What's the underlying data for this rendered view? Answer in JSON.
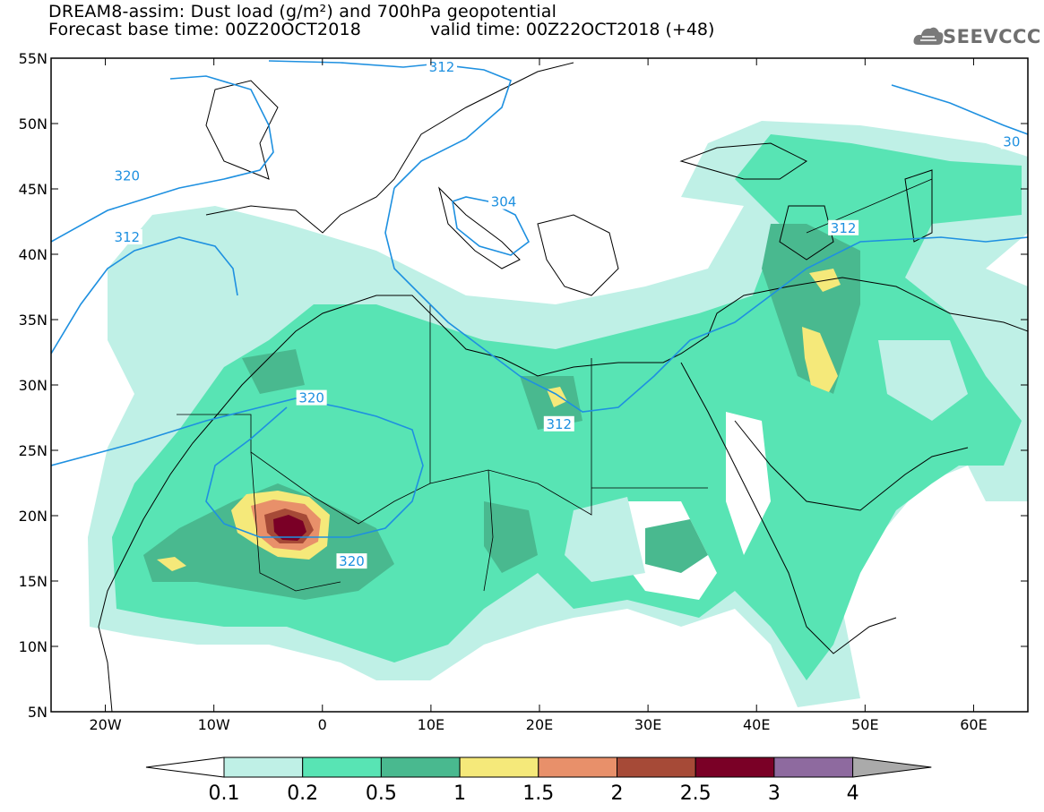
{
  "title_line1": "DREAM8-assim: Dust load (g/m²) and 700hPa geopotential",
  "title_line2": "Forecast base time: 00Z20OCT2018",
  "valid_time": "valid time: 00Z22OCT2018 (+48)",
  "logo": {
    "text": "SEEVCCC",
    "icon": "cloud-logo-icon"
  },
  "map": {
    "lon_range": [
      -25,
      65
    ],
    "lat_range": [
      5,
      55
    ],
    "lat_ticks": [
      {
        "value": 55,
        "label": "55N"
      },
      {
        "value": 50,
        "label": "50N"
      },
      {
        "value": 45,
        "label": "45N"
      },
      {
        "value": 40,
        "label": "40N"
      },
      {
        "value": 35,
        "label": "35N"
      },
      {
        "value": 30,
        "label": "30N"
      },
      {
        "value": 25,
        "label": "25N"
      },
      {
        "value": 20,
        "label": "20N"
      },
      {
        "value": 15,
        "label": "15N"
      },
      {
        "value": 10,
        "label": "10N"
      },
      {
        "value": 5,
        "label": "5N"
      }
    ],
    "lon_ticks": [
      {
        "value": -20,
        "label": "20W"
      },
      {
        "value": -10,
        "label": "10W"
      },
      {
        "value": 0,
        "label": "0"
      },
      {
        "value": 10,
        "label": "10E"
      },
      {
        "value": 20,
        "label": "20E"
      },
      {
        "value": 30,
        "label": "30E"
      },
      {
        "value": 40,
        "label": "40E"
      },
      {
        "value": 50,
        "label": "50E"
      },
      {
        "value": 60,
        "label": "60E"
      }
    ],
    "contour_labels": [
      {
        "text": "320",
        "lon": -18,
        "lat": 46
      },
      {
        "text": "312",
        "lon": -18,
        "lat": 41.3
      },
      {
        "text": "320",
        "lon": -1,
        "lat": 29
      },
      {
        "text": "320",
        "lon": 2.7,
        "lat": 16.5
      },
      {
        "text": "312",
        "lon": 21.8,
        "lat": 27
      },
      {
        "text": "312",
        "lon": 48,
        "lat": 42
      },
      {
        "text": "304",
        "lon": 16.7,
        "lat": 44
      },
      {
        "text": "312",
        "lon": 11,
        "lat": 54.3
      },
      {
        "text": "30",
        "lon": 63.5,
        "lat": 48.6
      }
    ],
    "contour_color": "#1e90e0"
  },
  "colorbar": {
    "colors": [
      "#bff0e6",
      "#58e4b4",
      "#49b98f",
      "#f5e97a",
      "#e8906a",
      "#a64a37",
      "#7a0026",
      "#8e6a9f",
      "#aaaaaa"
    ],
    "low_color": "#ffffff",
    "labels": [
      "0.1",
      "0.2",
      "0.5",
      "1",
      "1.5",
      "2",
      "2.5",
      "3",
      "4"
    ]
  }
}
